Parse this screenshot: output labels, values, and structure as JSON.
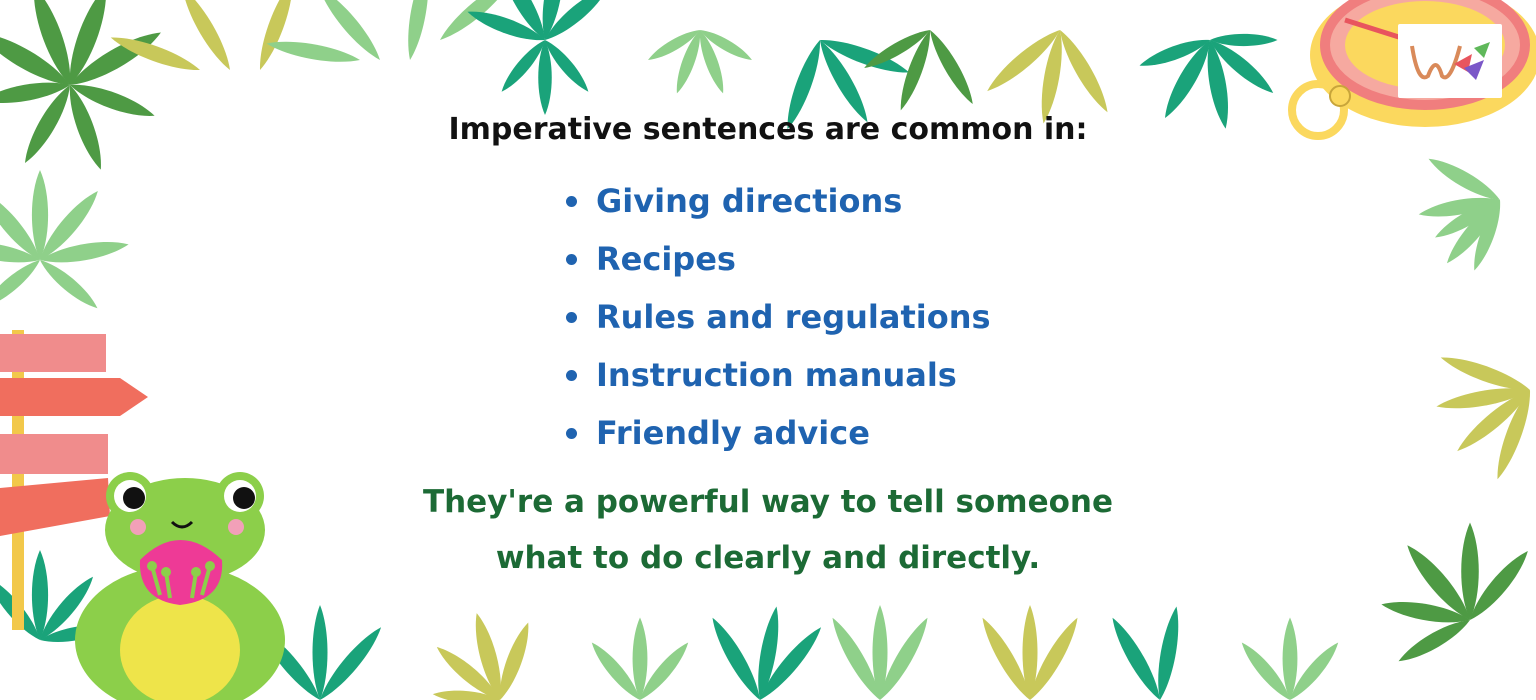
{
  "heading": "Imperative sentences are common in:",
  "bullets": [
    "Giving directions",
    "Recipes",
    "Rules and regulations",
    "Instruction manuals",
    "Friendly advice"
  ],
  "closing": {
    "line1": "They're a powerful way to tell someone",
    "line2": "what to do clearly and directly."
  },
  "colors": {
    "heading": "#111111",
    "bullets": "#1f63b0",
    "closing": "#1c6a35",
    "leaf_dark": "#1aa37a",
    "leaf_light": "#8fd08a",
    "leaf_olive": "#c8c85a",
    "leaf_green": "#4e9a44",
    "frog": "#8ccf4a",
    "sign": "#f08c8c"
  },
  "icons": {
    "logo": "w-brand-logo-icon",
    "frog": "frog-icon",
    "signpost": "signpost-icon",
    "compass": "compass-icon",
    "leaves": "tropical-leaf-icon"
  }
}
